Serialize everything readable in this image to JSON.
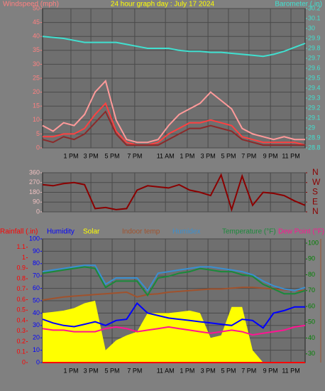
{
  "chart_data": [
    {
      "type": "line",
      "title": "24 hour graph day : July 17 2024",
      "ylabel": "Windspeed (mph)",
      "y2label": "Barometer (.in)",
      "xlim": [
        0,
        100
      ],
      "xticks": [
        {
          "value": 10.8,
          "label": "1 PM"
        },
        {
          "value": 18.4,
          "label": "3 PM"
        },
        {
          "value": 26.5,
          "label": "5 PM"
        },
        {
          "value": 35.1,
          "label": "7 PM"
        },
        {
          "value": 46.8,
          "label": "11 AM"
        },
        {
          "value": 55.1,
          "label": "1 PM"
        },
        {
          "value": 63,
          "label": "3 PM"
        },
        {
          "value": 70.8,
          "label": "5 PM"
        },
        {
          "value": 78.6,
          "label": "7 PM"
        },
        {
          "value": 86.8,
          "label": "9 PM"
        },
        {
          "value": 94.6,
          "label": "11 PM"
        }
      ],
      "ylim": [
        0,
        50
      ],
      "yticks": [
        0,
        5,
        10,
        15,
        20,
        25,
        30,
        35,
        40,
        45,
        50
      ],
      "ytick_color": "#ff8080",
      "y2lim": [
        28.8,
        30.2
      ],
      "y2ticks": [
        28.8,
        28.9,
        29,
        29.1,
        29.2,
        29.3,
        29.4,
        29.5,
        29.6,
        29.7,
        29.8,
        29.9,
        30,
        30.1,
        30.2
      ],
      "y2tick_color": "#40e0d0",
      "grid": true,
      "x": [
        0,
        4,
        8,
        12,
        16,
        20,
        24,
        28,
        32,
        36,
        40,
        44,
        48,
        52,
        56,
        60,
        64,
        68,
        72,
        76,
        80,
        84,
        88,
        92,
        96,
        100
      ],
      "series": [
        {
          "color": "#ff9a9a",
          "values": [
            8,
            6,
            9,
            8,
            12,
            20,
            24,
            10,
            3,
            2,
            2,
            3,
            8,
            12,
            14,
            16,
            20,
            17,
            14,
            7,
            5,
            4,
            3,
            4,
            3,
            3
          ]
        },
        {
          "color": "#ff4040",
          "values": [
            4,
            4,
            5,
            5,
            7,
            12,
            16,
            6,
            2,
            1,
            1,
            2,
            5,
            7,
            9,
            9,
            10,
            9,
            8,
            4,
            3,
            2,
            2,
            2,
            2,
            1
          ]
        },
        {
          "color": "#8b2a2a",
          "values": [
            3,
            2,
            4,
            3,
            5,
            9,
            13,
            5,
            1,
            1,
            1,
            1,
            3,
            5,
            7,
            7,
            8,
            7,
            6,
            3,
            2,
            1,
            1,
            1,
            1,
            1
          ]
        },
        {
          "color": "#40e0d0",
          "axis": "y2",
          "values": [
            29.92,
            29.91,
            29.9,
            29.88,
            29.86,
            29.86,
            29.86,
            29.86,
            29.84,
            29.82,
            29.8,
            29.8,
            29.8,
            29.78,
            29.77,
            29.77,
            29.76,
            29.76,
            29.75,
            29.74,
            29.73,
            29.72,
            29.74,
            29.77,
            29.81,
            29.85
          ]
        }
      ]
    },
    {
      "type": "line",
      "xlim": [
        0,
        100
      ],
      "ylim": [
        0,
        360
      ],
      "yticks": [
        0,
        90,
        180,
        270,
        360
      ],
      "ytick_color": "#f0c0c0",
      "y2lim": [
        0,
        360
      ],
      "y2ticks": [
        {
          "value": 0,
          "label": "N"
        },
        {
          "value": 90,
          "label": "E"
        },
        {
          "value": 180,
          "label": "S"
        },
        {
          "value": 270,
          "label": "W"
        },
        {
          "value": 360,
          "label": "N"
        }
      ],
      "y2tick_color": "#8b0000",
      "grid": true,
      "x": [
        0,
        4,
        8,
        12,
        16,
        20,
        24,
        28,
        32,
        36,
        40,
        44,
        48,
        52,
        56,
        60,
        64,
        68,
        72,
        76,
        80,
        84,
        88,
        92,
        96,
        100
      ],
      "series": [
        {
          "color": "#8b0000",
          "values": [
            250,
            240,
            260,
            270,
            250,
            30,
            40,
            20,
            30,
            200,
            240,
            230,
            220,
            250,
            200,
            180,
            150,
            340,
            20,
            330,
            60,
            180,
            170,
            150,
            100,
            60
          ]
        }
      ]
    },
    {
      "type": "line",
      "xlim": [
        0,
        100
      ],
      "xticks": [
        {
          "value": 10.8,
          "label": "1 PM"
        },
        {
          "value": 18.4,
          "label": "3 PM"
        },
        {
          "value": 26.5,
          "label": "5 PM"
        },
        {
          "value": 35.1,
          "label": "7 PM"
        },
        {
          "value": 46.8,
          "label": "11 AM"
        },
        {
          "value": 55.1,
          "label": "1 PM"
        },
        {
          "value": 63,
          "label": "3 PM"
        },
        {
          "value": 70.8,
          "label": "5 PM"
        },
        {
          "value": 78.6,
          "label": "7 PM"
        },
        {
          "value": 86.8,
          "label": "9 PM"
        },
        {
          "value": 94.6,
          "label": "11 PM"
        }
      ],
      "ylim": [
        0,
        100
      ],
      "yticks": [
        0,
        10,
        20,
        30,
        40,
        50,
        60,
        70,
        80,
        90,
        100
      ],
      "ytick_color": "#0000ff",
      "y2lim": [
        24.5,
        102.7
      ],
      "y2ticks": [
        30,
        40,
        50,
        60,
        70,
        80,
        90,
        100
      ],
      "y2tick_color": "#008000",
      "y3lim": [
        0,
        1.18
      ],
      "y3ticks": [
        0,
        0.1,
        0.2,
        0.3,
        0.4,
        0.5,
        0.6,
        0.7,
        0.8,
        0.9,
        1,
        1.1
      ],
      "y3tick_color": "#ff0000",
      "grid": true,
      "x": [
        0,
        4,
        8,
        12,
        16,
        20,
        24,
        28,
        32,
        36,
        40,
        44,
        48,
        52,
        56,
        60,
        64,
        68,
        72,
        76,
        80,
        84,
        88,
        92,
        96,
        100
      ],
      "series": [
        {
          "name": "Solar",
          "color": "#ffff00",
          "kind": "area",
          "values": [
            40,
            41,
            42,
            44,
            48,
            50,
            10,
            18,
            22,
            25,
            40,
            40,
            40,
            41,
            42,
            40,
            20,
            22,
            45,
            45,
            10,
            0,
            0,
            0,
            0,
            0
          ]
        },
        {
          "name": "Rainfall (.in)",
          "color": "#ff0000",
          "axis": "y3",
          "values": [
            0,
            0,
            0,
            0,
            0,
            0,
            0,
            0,
            0,
            0,
            0,
            0,
            0,
            0,
            0,
            0,
            0,
            0,
            0,
            0,
            0,
            0,
            0,
            0,
            0,
            0
          ]
        },
        {
          "name": "Humidity",
          "color": "#0000ff",
          "values": [
            35,
            32,
            30,
            29,
            31,
            33,
            30,
            34,
            35,
            48,
            40,
            38,
            36,
            35,
            34,
            33,
            32,
            31,
            30,
            35,
            34,
            28,
            40,
            42,
            45,
            45
          ]
        },
        {
          "name": "Indoor temp",
          "color": "#a0522d",
          "axis": "y2",
          "values": [
            64,
            65,
            66,
            66.5,
            67,
            67.5,
            68,
            68.5,
            69,
            66,
            67.5,
            68,
            69,
            69.5,
            70,
            70.5,
            71,
            71,
            71.5,
            72,
            72,
            71.5,
            71,
            70.5,
            70,
            70
          ]
        },
        {
          "name": "Humidex",
          "color": "#3a8fd0",
          "axis": "y2",
          "values": [
            82,
            83,
            84,
            85,
            86,
            86,
            74,
            78,
            78,
            78,
            70,
            81,
            82,
            83,
            84,
            85,
            85,
            84,
            83,
            82,
            80,
            76,
            73,
            71,
            70,
            72
          ]
        },
        {
          "name": "Temperature (°F)",
          "color": "#1a8a3a",
          "axis": "y2",
          "values": [
            81,
            82,
            83,
            84,
            85,
            84,
            72,
            76,
            76,
            76,
            67,
            78,
            79,
            81,
            82,
            84,
            83,
            82,
            82,
            80,
            79,
            74,
            71,
            68,
            68,
            70
          ]
        },
        {
          "name": "Dew Point (°F)",
          "color": "#ff1493",
          "axis": "y2",
          "values": [
            46,
            45,
            45,
            44,
            44,
            44,
            46,
            47,
            46,
            44,
            45,
            46,
            47,
            46,
            45,
            44,
            43,
            44,
            45,
            44,
            42,
            43,
            44,
            45,
            47,
            48
          ]
        }
      ]
    }
  ]
}
